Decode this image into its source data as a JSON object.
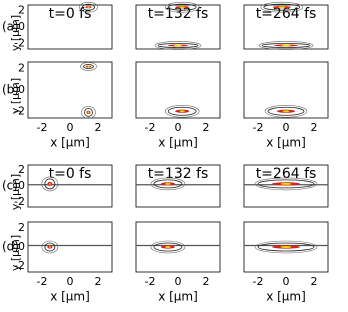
{
  "column_titles": [
    "t=0 fs",
    "t=132 fs",
    "t=264 fs"
  ],
  "row_labels": [
    "(a)",
    "(b)",
    "(c)",
    "(d)"
  ],
  "y_label": "y [μm]",
  "x_label": "x [μm]",
  "y_tick_labels": [
    "2",
    "0",
    "-2"
  ],
  "x_tick_labels": [
    "-2",
    "0",
    "2"
  ]
}
